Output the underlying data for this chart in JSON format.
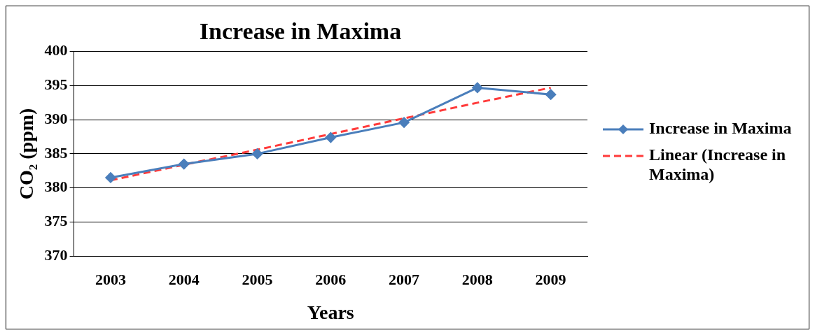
{
  "chart_data": {
    "type": "line",
    "title": "Increase in Maxima",
    "xlabel": "Years",
    "ylabel": "CO₂ (ppm)",
    "categories": [
      "2003",
      "2004",
      "2005",
      "2006",
      "2007",
      "2008",
      "2009"
    ],
    "series": [
      {
        "name": "Increase in Maxima",
        "color": "#4a7ebb",
        "values": [
          381.5,
          383.5,
          385.0,
          387.4,
          389.6,
          394.7,
          393.7
        ],
        "marker": "diamond",
        "line_style": "solid"
      },
      {
        "name": "Linear (Increase in Maxima)",
        "color": "#ff3b3b",
        "values": [
          381.1,
          383.4,
          385.6,
          387.9,
          390.2,
          392.5,
          394.7
        ],
        "marker": "none",
        "line_style": "dashed"
      }
    ],
    "ylim": [
      370,
      400
    ],
    "yticks": [
      370,
      375,
      380,
      385,
      390,
      395,
      400
    ],
    "grid": "y",
    "legend": "right"
  }
}
